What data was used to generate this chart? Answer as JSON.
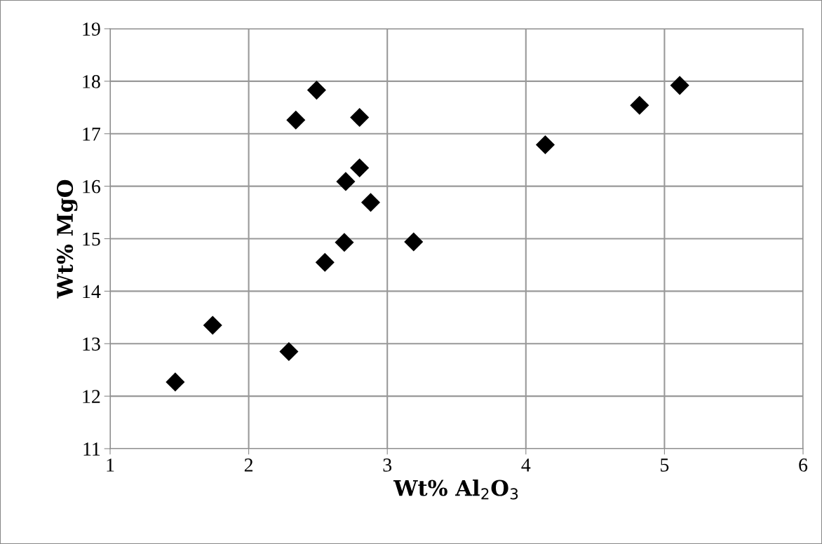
{
  "chart_data": {
    "type": "scatter",
    "xlabel": "Wt% Al$_{2}$O$_{3}$",
    "ylabel": "Wt% MgO",
    "x": [
      1.47,
      1.74,
      2.29,
      2.34,
      2.49,
      2.8,
      2.7,
      2.8,
      2.88,
      2.69,
      2.55,
      3.19,
      4.14,
      4.82,
      5.11
    ],
    "series": [
      {
        "color": "#000000",
        "values": [
          12.27,
          13.35,
          12.85,
          17.26,
          17.83,
          17.31,
          16.09,
          16.35,
          15.69,
          14.93,
          14.55,
          14.94,
          16.79,
          17.54,
          17.92
        ]
      }
    ],
    "xlim": [
      1,
      6
    ],
    "xticks": [
      1,
      2,
      3,
      4,
      5,
      6
    ],
    "ylim": [
      11,
      19
    ],
    "yticks": [
      11,
      12,
      13,
      14,
      15,
      16,
      17,
      18,
      19
    ],
    "grid": true,
    "marker": "diamond",
    "legend": false
  }
}
